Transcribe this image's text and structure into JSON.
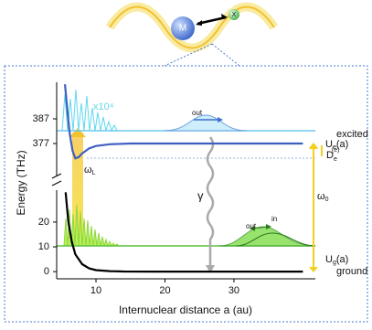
{
  "chart_data": {
    "type": "line",
    "x_label": "Internuclear distance a (au)",
    "y_label": "Energy (THz)",
    "xlim": [
      4.3,
      41.8
    ],
    "xticks": [
      10,
      20,
      30
    ],
    "ylim": [
      -2.9,
      32.9
    ],
    "yticks": [
      0,
      10,
      20
    ],
    "y2lim": [
      364.8,
      401.8
    ],
    "y2ticks": [
      377,
      387
    ],
    "series": [
      {
        "name": "ground",
        "label": [
          "U",
          "g",
          "(a)"
        ],
        "color": "#000000",
        "x": [
          5.6,
          6,
          6.5,
          7,
          8,
          9,
          10,
          12,
          14,
          18,
          25,
          40
        ],
        "values": [
          32,
          20,
          12,
          7,
          3,
          1.3,
          0.6,
          0.2,
          0.05,
          0,
          0,
          0
        ]
      },
      {
        "name": "excited",
        "label": [
          "U",
          "e",
          "(a)"
        ],
        "color": "#3f5fbf",
        "axis": "y2",
        "x": [
          5.5,
          5.8,
          6.2,
          6.6,
          7,
          7.5,
          8,
          9,
          10,
          12,
          15,
          20,
          40
        ],
        "values": [
          401,
          392,
          381,
          374,
          371,
          371.5,
          373,
          375,
          376,
          376.7,
          377,
          377,
          377
        ]
      }
    ],
    "annotations": {
      "molecule_m": "M",
      "molecule_x": "X",
      "scale": "x10⁴",
      "out_upper": "out",
      "out_lower": "out",
      "in": "in",
      "gamma": "γ",
      "omega_l": [
        "ω",
        "L"
      ],
      "omega_0": [
        "ω",
        "0"
      ],
      "de": [
        "D",
        "e",
        "(e)"
      ]
    }
  }
}
